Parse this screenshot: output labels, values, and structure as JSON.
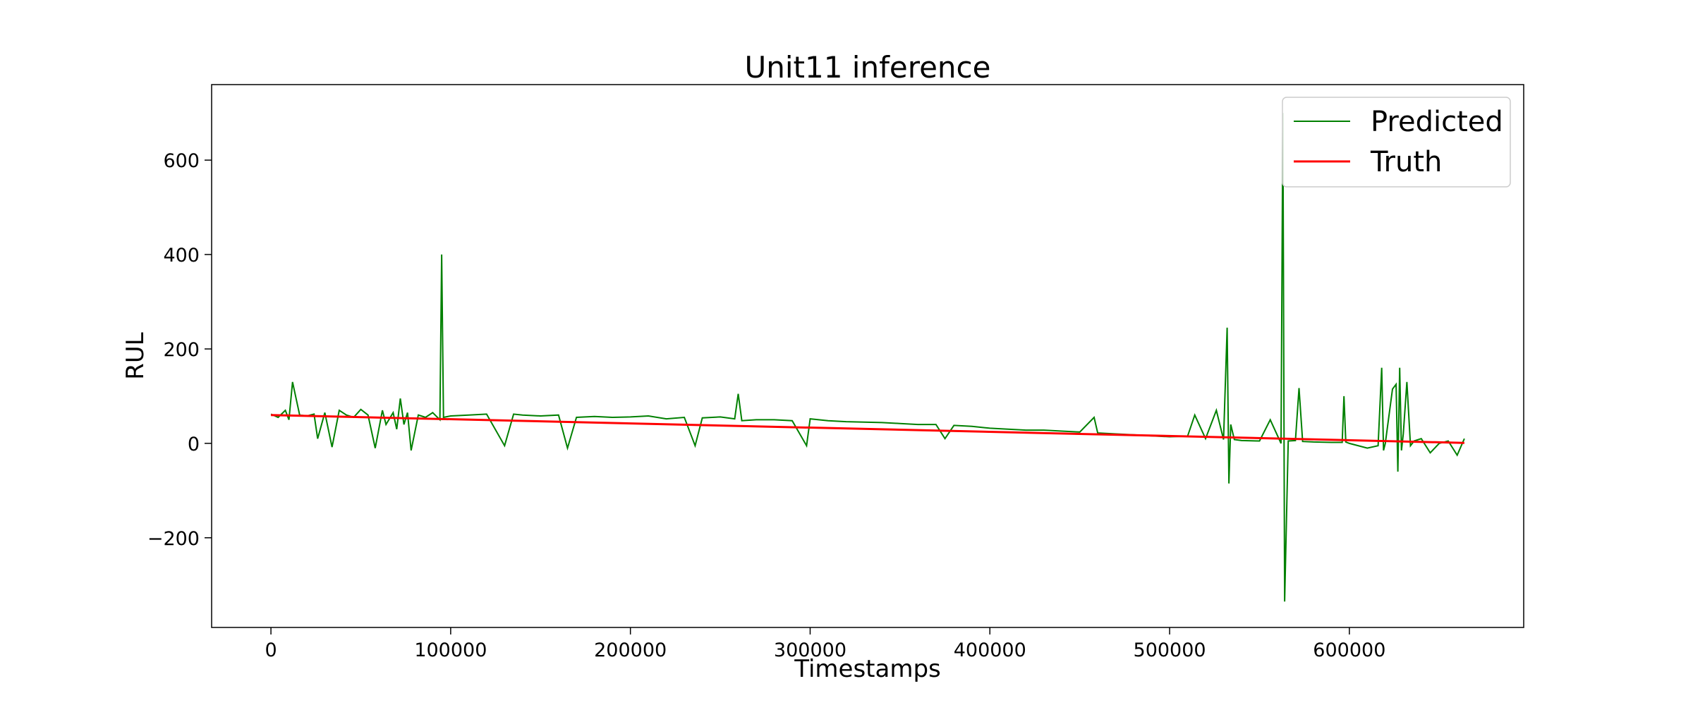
{
  "chart_data": {
    "type": "line",
    "title": "Unit11 inference",
    "xlabel": "Timestamps",
    "ylabel": "RUL",
    "xlim": [
      -33000,
      697000
    ],
    "ylim": [
      -390,
      760
    ],
    "xticks": [
      0,
      100000,
      200000,
      300000,
      400000,
      500000,
      600000
    ],
    "xtick_labels": [
      "0",
      "100000",
      "200000",
      "300000",
      "400000",
      "500000",
      "600000"
    ],
    "yticks": [
      -200,
      0,
      200,
      400,
      600
    ],
    "ytick_labels": [
      "−200",
      "0",
      "200",
      "400",
      "600"
    ],
    "grid": false,
    "legend_position": "top-right",
    "series": [
      {
        "name": "Predicted",
        "color": "#008000",
        "x": [
          0,
          4000,
          8000,
          10000,
          12000,
          16000,
          20000,
          24000,
          26000,
          30000,
          34000,
          38000,
          42000,
          46000,
          50000,
          54000,
          58000,
          62000,
          64000,
          68000,
          70000,
          72000,
          74000,
          76000,
          78000,
          82000,
          86000,
          90000,
          94000,
          95000,
          96000,
          100000,
          110000,
          120000,
          130000,
          135000,
          140000,
          150000,
          160000,
          165000,
          170000,
          180000,
          190000,
          200000,
          210000,
          220000,
          230000,
          236000,
          240000,
          250000,
          258000,
          260000,
          262000,
          270000,
          280000,
          290000,
          298000,
          300000,
          310000,
          320000,
          330000,
          340000,
          350000,
          360000,
          370000,
          375000,
          380000,
          390000,
          400000,
          410000,
          420000,
          430000,
          440000,
          450000,
          458000,
          460000,
          470000,
          480000,
          490000,
          500000,
          510000,
          514000,
          520000,
          526000,
          530000,
          532000,
          533000,
          534000,
          536000,
          540000,
          550000,
          556000,
          562000,
          563000,
          564000,
          566000,
          570000,
          572000,
          574000,
          580000,
          590000,
          596000,
          597000,
          598000,
          600000,
          610000,
          616000,
          618000,
          619000,
          620000,
          624000,
          626000,
          627000,
          628000,
          629000,
          630000,
          632000,
          634000,
          636000,
          640000,
          645000,
          650000,
          655000,
          660000,
          664000
        ],
        "y": [
          62,
          55,
          70,
          50,
          130,
          60,
          58,
          62,
          10,
          65,
          -8,
          70,
          60,
          55,
          72,
          60,
          -10,
          70,
          40,
          65,
          30,
          95,
          40,
          65,
          -15,
          60,
          55,
          65,
          50,
          400,
          55,
          58,
          60,
          62,
          -5,
          62,
          60,
          58,
          60,
          -10,
          55,
          57,
          55,
          56,
          58,
          52,
          55,
          -5,
          54,
          56,
          52,
          105,
          48,
          50,
          50,
          48,
          -5,
          52,
          48,
          46,
          45,
          44,
          42,
          40,
          40,
          10,
          38,
          36,
          32,
          30,
          28,
          28,
          26,
          24,
          55,
          22,
          20,
          18,
          16,
          14,
          15,
          60,
          10,
          70,
          8,
          245,
          -85,
          40,
          8,
          6,
          5,
          50,
          0,
          700,
          -335,
          5,
          6,
          117,
          4,
          3,
          2,
          2,
          100,
          3,
          0,
          -10,
          -5,
          160,
          -15,
          0,
          115,
          125,
          -60,
          160,
          -15,
          20,
          130,
          -5,
          5,
          10,
          -20,
          0,
          5,
          -25,
          10
        ]
      },
      {
        "name": "Truth",
        "color": "#ff0000",
        "x": [
          0,
          664000
        ],
        "y": [
          60,
          1
        ]
      }
    ]
  }
}
